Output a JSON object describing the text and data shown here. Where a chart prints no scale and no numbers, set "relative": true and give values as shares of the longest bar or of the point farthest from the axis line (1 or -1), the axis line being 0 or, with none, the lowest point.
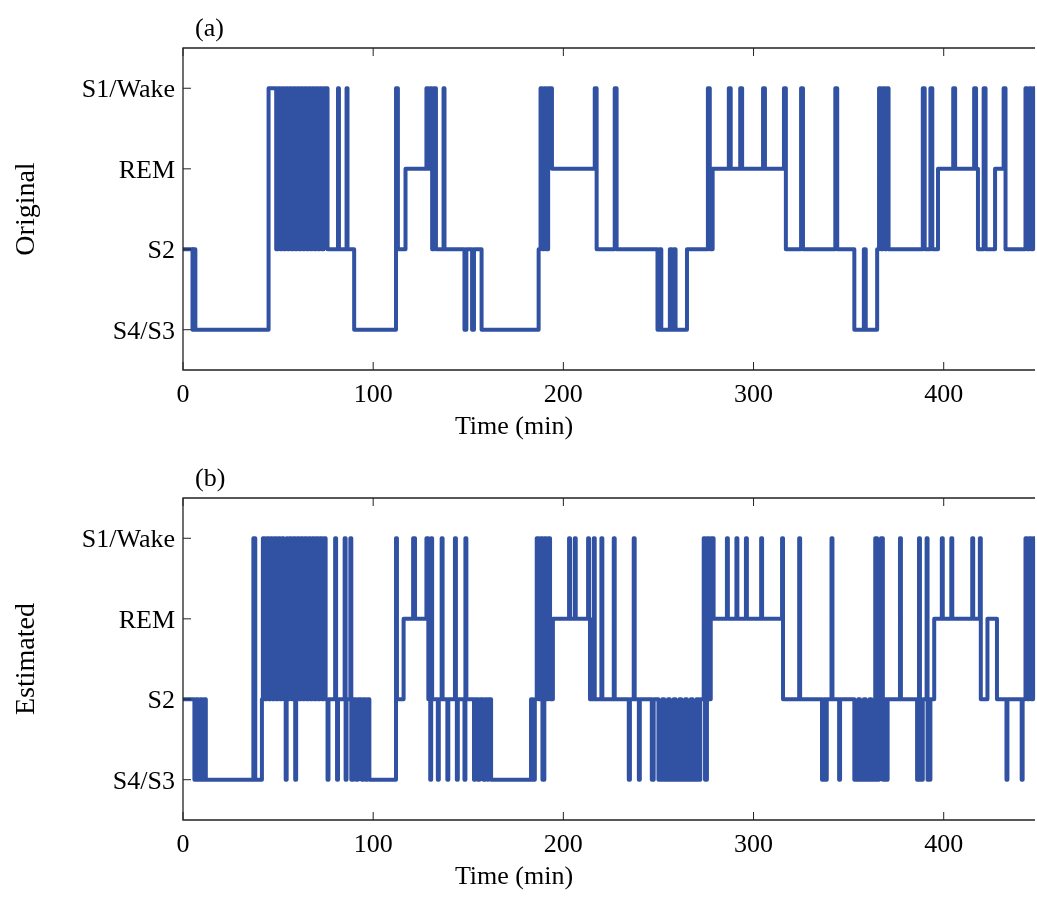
{
  "chart_data": [
    {
      "type": "step",
      "title": "(a)",
      "xlabel": "Time (min)",
      "ylabel": "Original",
      "color": "#3152a3",
      "xlim": [
        0,
        448
      ],
      "xticks": [
        0,
        100,
        200,
        300,
        400
      ],
      "relative": true,
      "annotations": [
        "S4/S3",
        "S2",
        "REM",
        "S1/Wake"
      ],
      "x": [
        0,
        5,
        5.5,
        6.5,
        45,
        49,
        50,
        51,
        52,
        53,
        54,
        55,
        56,
        57,
        58,
        59,
        60,
        61,
        62,
        63,
        64,
        65,
        66,
        67,
        68,
        69,
        70,
        71,
        72,
        73,
        74,
        76,
        81.5,
        82,
        86,
        86.5,
        90,
        112,
        113,
        117,
        128,
        129,
        130,
        131,
        132,
        133,
        137,
        137.5,
        148,
        149,
        152,
        153,
        157,
        187,
        188,
        189,
        190,
        191,
        192,
        194,
        216.5,
        217.5,
        227,
        228,
        249.5,
        250.5,
        251.5,
        256,
        257,
        258,
        259,
        265,
        276,
        277,
        278.5,
        287,
        288,
        293,
        294,
        305,
        306,
        316,
        317,
        325,
        326,
        343,
        344,
        353,
        358,
        359,
        365,
        366,
        367,
        368,
        369,
        370,
        371,
        389,
        390,
        393,
        394,
        397,
        405,
        406,
        416,
        417,
        418,
        421,
        422,
        427,
        431.5,
        432.5,
        443,
        444,
        445,
        446,
        447,
        448
      ],
      "values": [
        0.429,
        0.143,
        0.429,
        0.143,
        1,
        0.429,
        1,
        0.429,
        1,
        0.429,
        1,
        0.429,
        1,
        0.429,
        1,
        0.429,
        1,
        0.429,
        1,
        0.429,
        1,
        0.429,
        1,
        0.429,
        1,
        0.429,
        1,
        0.429,
        1,
        0.429,
        1,
        0.429,
        1,
        0.429,
        1,
        0.429,
        0.143,
        1,
        0.429,
        0.714,
        1,
        0.714,
        1,
        0.429,
        1,
        0.429,
        1,
        0.429,
        0.143,
        0.429,
        0.143,
        0.429,
        0.143,
        0.429,
        1,
        0.429,
        1,
        0.429,
        1,
        0.714,
        1,
        0.429,
        1,
        0.429,
        0.143,
        0.429,
        0.143,
        0.429,
        0.143,
        0.429,
        0.143,
        0.429,
        1,
        0.429,
        0.714,
        1,
        0.714,
        1,
        0.714,
        1,
        0.714,
        1,
        0.429,
        1,
        0.429,
        1,
        0.429,
        0.143,
        0.429,
        0.143,
        0.429,
        1,
        0.429,
        1,
        0.429,
        1,
        0.429,
        1,
        0.429,
        1,
        0.429,
        0.714,
        1,
        0.714,
        1,
        0.714,
        0.429,
        1,
        0.429,
        0.714,
        1,
        0.429,
        1,
        0.429,
        1,
        0.429,
        1,
        1
      ]
    },
    {
      "type": "step",
      "title": "(b)",
      "xlabel": "Time (min)",
      "ylabel": "Estimated",
      "color": "#3152a3",
      "xlim": [
        0,
        448
      ],
      "xticks": [
        0,
        100,
        200,
        300,
        400
      ],
      "relative": true,
      "annotations": [
        "S4/S3",
        "S2",
        "REM",
        "S1/Wake"
      ],
      "x": [
        0,
        6,
        7,
        8,
        9,
        10,
        11,
        12,
        37,
        38,
        41.5,
        42,
        43,
        44,
        45,
        46,
        47,
        48,
        49,
        50,
        51,
        52,
        53,
        54,
        54.5,
        55,
        56,
        57,
        58,
        59,
        59.5,
        60,
        61,
        62,
        63,
        64,
        65,
        66,
        67,
        68,
        69,
        70,
        71,
        72,
        73,
        74,
        75,
        76,
        76.5,
        80,
        80.5,
        81,
        81.5,
        85,
        85.5,
        86,
        88,
        88.5,
        89.5,
        91,
        92,
        94,
        95,
        96,
        97,
        98,
        112,
        112.5,
        116,
        121,
        122,
        128,
        129,
        130,
        130.5,
        131,
        134,
        134.5,
        136,
        136.5,
        139,
        139.5,
        143,
        143.5,
        144,
        144.5,
        148,
        148.5,
        149,
        153,
        153.5,
        155,
        156,
        158,
        159,
        160,
        160.5,
        162,
        183,
        184,
        185,
        186,
        187,
        188,
        189,
        190,
        191,
        192,
        193,
        194.5,
        203,
        203.5,
        206,
        206.5,
        213,
        213.5,
        214,
        216,
        216.5,
        220,
        220.5,
        226.5,
        227,
        234.4,
        235,
        237,
        237.5,
        239.7,
        240.2,
        246.5,
        247.5,
        250,
        252,
        253,
        255,
        256,
        258,
        259,
        261,
        262,
        264,
        265,
        267,
        268,
        270,
        271,
        272,
        273.8,
        274.5,
        275.5,
        276.5,
        277.5,
        279,
        286,
        286.5,
        291,
        291.5,
        296,
        296.5,
        304,
        304.5,
        315,
        315.5,
        324,
        324.5,
        336,
        337,
        338,
        338.5,
        341,
        341.5,
        345,
        345.5,
        353,
        355,
        356,
        358,
        359,
        361,
        362,
        364,
        365,
        366,
        367,
        368,
        369,
        370,
        370.5,
        377,
        377.5,
        386,
        387,
        387.5,
        389,
        391,
        391.5,
        393,
        395,
        399,
        399.5,
        404,
        404.5,
        415,
        415.5,
        419,
        419.5,
        423,
        428,
        433,
        433.5,
        441,
        441.5,
        443,
        444,
        445,
        446,
        447,
        448
      ],
      "values": [
        0.429,
        0.143,
        0.429,
        0.143,
        0.429,
        0.143,
        0.429,
        0.143,
        1,
        0.143,
        0.429,
        1,
        0.429,
        1,
        0.429,
        1,
        0.429,
        1,
        0.429,
        1,
        0.429,
        1,
        0.429,
        0.143,
        1,
        0.429,
        1,
        0.429,
        1,
        0.143,
        0.429,
        1,
        0.429,
        1,
        0.429,
        1,
        0.429,
        1,
        0.429,
        1,
        0.429,
        1,
        0.429,
        1,
        0.429,
        1,
        0.429,
        0.143,
        0.429,
        1,
        0.429,
        0.143,
        0.429,
        1,
        0.143,
        0.429,
        1,
        0.143,
        0.429,
        0.143,
        0.429,
        0.143,
        0.429,
        0.143,
        0.429,
        0.143,
        1,
        0.429,
        0.714,
        1,
        0.714,
        1,
        0.429,
        0.143,
        1,
        0.429,
        0.143,
        0.429,
        1,
        0.429,
        0.143,
        0.429,
        1,
        0.429,
        0.143,
        0.429,
        0.143,
        1,
        0.429,
        0.143,
        0.429,
        0.143,
        0.429,
        0.143,
        0.429,
        0.143,
        0.429,
        0.143,
        0.429,
        0.143,
        0.429,
        1,
        0.429,
        1,
        0.143,
        1,
        0.429,
        1,
        0.429,
        0.714,
        1,
        0.714,
        1,
        0.714,
        1,
        0.714,
        0.429,
        1,
        0.429,
        1,
        0.429,
        1,
        0.429,
        0.143,
        0.429,
        1,
        0.429,
        0.143,
        0.429,
        0.143,
        0.429,
        0.143,
        0.429,
        0.143,
        0.429,
        0.143,
        0.429,
        0.143,
        0.429,
        0.143,
        0.429,
        0.143,
        0.429,
        0.143,
        0.429,
        0.143,
        0.429,
        1,
        0.143,
        1,
        0.429,
        1,
        0.714,
        1,
        0.714,
        1,
        0.714,
        1,
        0.714,
        1,
        0.714,
        1,
        0.429,
        1,
        0.429,
        0.143,
        0.429,
        0.143,
        0.429,
        1,
        0.429,
        0.143,
        0.429,
        0.143,
        0.429,
        0.143,
        0.429,
        0.143,
        0.429,
        0.143,
        1,
        0.143,
        0.429,
        1,
        0.143,
        0.429,
        0.143,
        0.429,
        1,
        0.429,
        0.143,
        1,
        0.143,
        0.429,
        1,
        0.143,
        0.429,
        0.714,
        1,
        0.714,
        1,
        0.714,
        1,
        0.714,
        1,
        0.429,
        0.714,
        0.429,
        0.143,
        0.429,
        0.143,
        0.429,
        1,
        0.429,
        1,
        0.429,
        1,
        1
      ]
    }
  ]
}
